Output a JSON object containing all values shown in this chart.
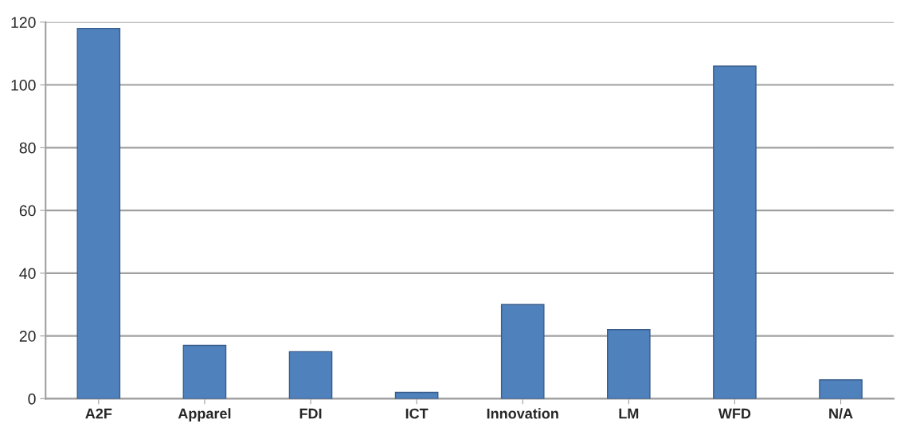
{
  "chart_data": {
    "type": "bar",
    "categories": [
      "A2F",
      "Apparel",
      "FDI",
      "ICT",
      "Innovation",
      "LM",
      "WFD",
      "N/A"
    ],
    "series": [
      {
        "color": "#4f81bd",
        "values": [
          118,
          17,
          15,
          2,
          30,
          22,
          106,
          6
        ]
      }
    ],
    "ylim": [
      0,
      120
    ],
    "yticks": [
      0,
      20,
      40,
      60,
      80,
      100,
      120
    ],
    "grid": "y",
    "legend": false
  }
}
